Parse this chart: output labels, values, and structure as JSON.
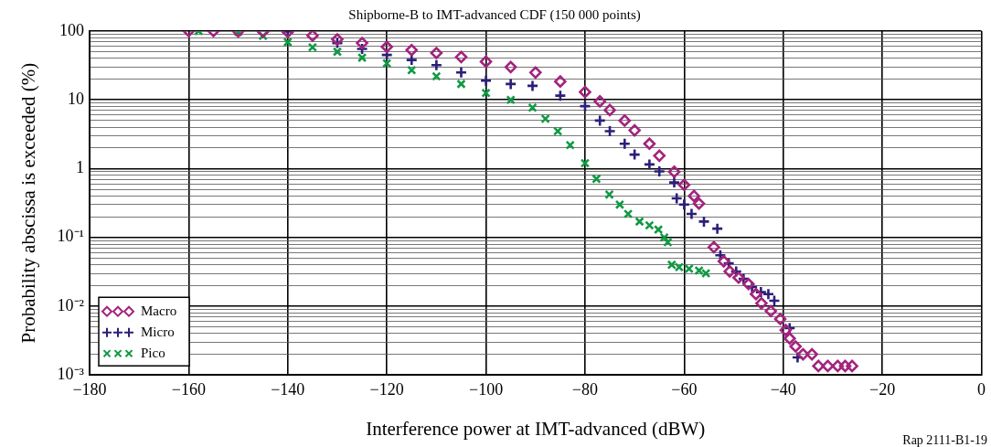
{
  "chart_data": {
    "type": "scatter",
    "title": "Shipborne-B to IMT-advanced CDF (150 000 points)",
    "xlabel": "Interference power at IMT-advanced (dBW)",
    "ylabel": "Probability abscissa is exceeded (%)",
    "annotations": [
      "Rap 2111-B1-19"
    ],
    "log": "y",
    "grid": true,
    "legend": "bottom left",
    "xlim": [
      -180,
      0
    ],
    "xticks": [
      {
        "value": -180,
        "label": "−180"
      },
      {
        "value": -160,
        "label": "−160"
      },
      {
        "value": -140,
        "label": "−140"
      },
      {
        "value": -120,
        "label": "−120"
      },
      {
        "value": -100,
        "label": "−100"
      },
      {
        "value": -80,
        "label": "−80"
      },
      {
        "value": -60,
        "label": "−60"
      },
      {
        "value": -40,
        "label": "−40"
      },
      {
        "value": -20,
        "label": "−20"
      },
      0
    ],
    "ylim": [
      0.001,
      100
    ],
    "yticks": [
      {
        "value": 0.001,
        "label": "10⁻³"
      },
      {
        "value": 0.002,
        "label": null
      },
      {
        "value": 0.003,
        "label": null
      },
      {
        "value": 0.004,
        "label": null
      },
      {
        "value": 0.005,
        "label": null
      },
      {
        "value": 0.006,
        "label": null
      },
      {
        "value": 0.007,
        "label": null
      },
      {
        "value": 0.008,
        "label": null
      },
      {
        "value": 0.009,
        "label": null
      },
      {
        "value": 0.01,
        "label": "10⁻²"
      },
      {
        "value": 0.02,
        "label": null
      },
      {
        "value": 0.03,
        "label": null
      },
      {
        "value": 0.04,
        "label": null
      },
      {
        "value": 0.05,
        "label": null
      },
      {
        "value": 0.06,
        "label": null
      },
      {
        "value": 0.07,
        "label": null
      },
      {
        "value": 0.08,
        "label": null
      },
      {
        "value": 0.09,
        "label": null
      },
      {
        "value": 0.1,
        "label": "10⁻¹"
      },
      {
        "value": 0.2,
        "label": null
      },
      {
        "value": 0.3,
        "label": null
      },
      {
        "value": 0.4,
        "label": null
      },
      {
        "value": 0.5,
        "label": null
      },
      {
        "value": 0.6,
        "label": null
      },
      {
        "value": 0.7,
        "label": null
      },
      {
        "value": 0.8,
        "label": null
      },
      {
        "value": 0.9,
        "label": null
      },
      1,
      {
        "value": 2,
        "label": null
      },
      {
        "value": 3,
        "label": null
      },
      {
        "value": 4,
        "label": null
      },
      {
        "value": 5,
        "label": null
      },
      {
        "value": 6,
        "label": null
      },
      {
        "value": 7,
        "label": null
      },
      {
        "value": 8,
        "label": null
      },
      {
        "value": 9,
        "label": null
      },
      10,
      {
        "value": 20,
        "label": null
      },
      {
        "value": 30,
        "label": null
      },
      {
        "value": 40,
        "label": null
      },
      {
        "value": 50,
        "label": null
      },
      {
        "value": 60,
        "label": null
      },
      {
        "value": 70,
        "label": null
      },
      {
        "value": 80,
        "label": null
      },
      {
        "value": 90,
        "label": null
      },
      100
    ],
    "series": [
      {
        "name": "Macro",
        "color": "#a3237d",
        "marker": "diamond",
        "x": [
          -160,
          -155,
          -150,
          -145,
          -140,
          -135,
          -130,
          -125,
          -120,
          -115,
          -110,
          -105,
          -100,
          -95,
          -90,
          -85,
          -80,
          -77,
          -75,
          -72,
          -70,
          -67,
          -65,
          -62,
          -60,
          -58,
          -57,
          -54,
          -52,
          -50.8,
          -49,
          -47,
          -45.5,
          -44.4,
          -42.5,
          -40.6,
          -39.5,
          -38.7,
          -37.5,
          -36,
          -34.2,
          -32.9,
          -31,
          -29,
          -27.5,
          -26.1
        ],
        "values": [
          100,
          100,
          99,
          98,
          97,
          86,
          76,
          67,
          59,
          53,
          48,
          42,
          36,
          30,
          25,
          18.5,
          13,
          9.5,
          7.1,
          5,
          3.6,
          2.3,
          1.54,
          0.9,
          0.58,
          0.4,
          0.31,
          0.072,
          0.045,
          0.032,
          0.026,
          0.021,
          0.015,
          0.011,
          0.0085,
          0.0065,
          0.0045,
          0.0034,
          0.0026,
          0.002,
          0.002,
          0.00135,
          0.00135,
          0.00135,
          0.00135,
          0.00135
        ]
      },
      {
        "name": "Micro",
        "color": "#2b1f7a",
        "marker": "plus",
        "x": [
          -140,
          -130,
          -125,
          -120,
          -115,
          -110,
          -105,
          -100,
          -95,
          -90.6,
          -85,
          -80,
          -77,
          -75,
          -72,
          -70,
          -67,
          -65,
          -62,
          -61.5,
          -60,
          -58.5,
          -56,
          -53.3,
          -52.7,
          -51,
          -49.5,
          -48,
          -46.3,
          -44.5,
          -43,
          -41.8,
          -38.7,
          -37.1
        ],
        "values": [
          99,
          67,
          55,
          45,
          38,
          32,
          25,
          19,
          17,
          16,
          11.5,
          8.1,
          5,
          3.5,
          2.3,
          1.6,
          1.15,
          0.91,
          0.63,
          0.37,
          0.3,
          0.22,
          0.17,
          0.134,
          0.055,
          0.042,
          0.032,
          0.025,
          0.019,
          0.016,
          0.015,
          0.012,
          0.0048,
          0.0018
        ]
      },
      {
        "name": "Pico",
        "color": "#0f9a42",
        "marker": "cross",
        "x": [
          -158,
          -150,
          -145,
          -140,
          -135,
          -130,
          -125,
          -120,
          -115,
          -110,
          -105,
          -100,
          -95,
          -90.6,
          -88,
          -85.5,
          -83,
          -80,
          -77.7,
          -75.1,
          -73,
          -71.3,
          -69,
          -67,
          -65.2,
          -64,
          -63.3,
          -62.5,
          -61,
          -59,
          -57,
          -55.6
        ],
        "values": [
          100,
          97,
          85,
          69,
          58,
          50,
          41,
          34,
          27,
          22,
          17,
          12.6,
          10,
          7.7,
          5.3,
          3.5,
          2.2,
          1.2,
          0.71,
          0.42,
          0.3,
          0.22,
          0.17,
          0.15,
          0.13,
          0.1,
          0.085,
          0.04,
          0.037,
          0.035,
          0.033,
          0.03
        ]
      }
    ]
  }
}
